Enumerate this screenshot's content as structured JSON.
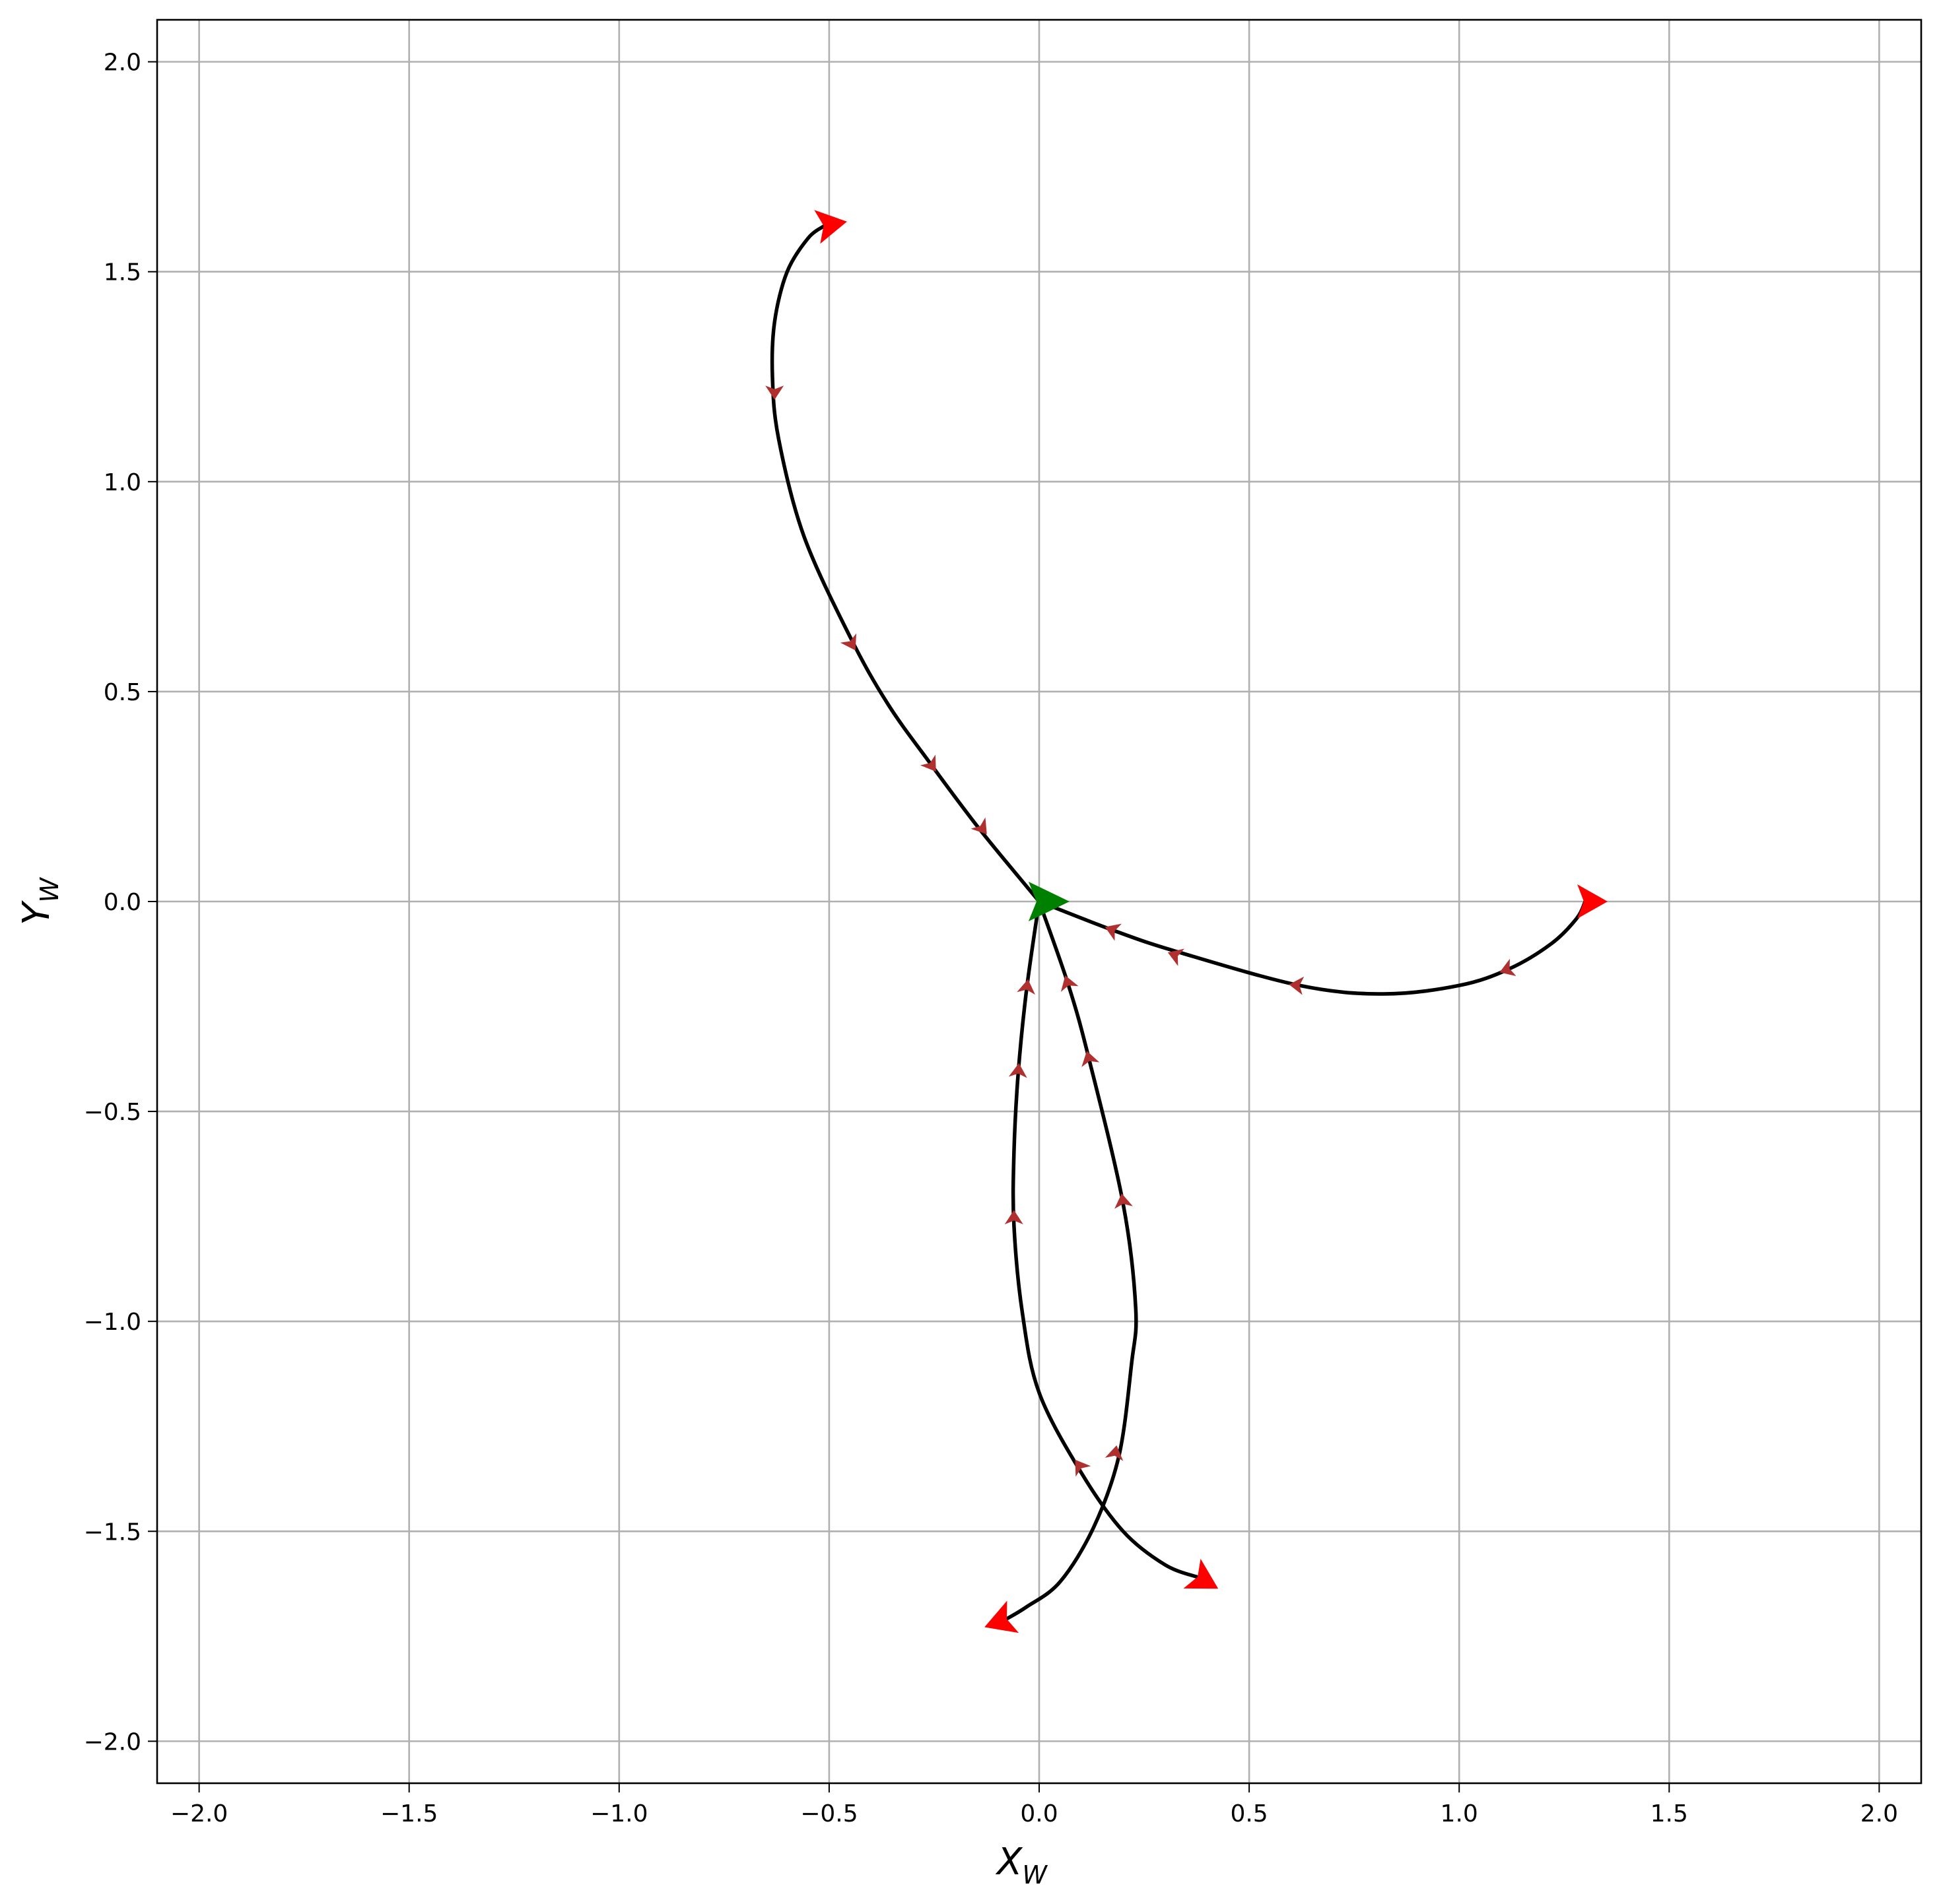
{
  "chart_data": {
    "type": "line",
    "title": "",
    "xlabel": "X",
    "xlabel_sub": "W",
    "ylabel": "Y",
    "ylabel_sub": "W",
    "xlim": [
      -2.1,
      2.1
    ],
    "ylim": [
      -2.1,
      2.1
    ],
    "grid": true,
    "x_ticks": [
      -2.0,
      -1.5,
      -1.0,
      -0.5,
      0.0,
      0.5,
      1.0,
      1.5,
      2.0
    ],
    "y_ticks": [
      -2.0,
      -1.5,
      -1.0,
      -0.5,
      0.0,
      0.5,
      1.0,
      1.5,
      2.0
    ],
    "x_tick_labels": [
      "−2.0",
      "−1.5",
      "−1.0",
      "−0.5",
      "0.0",
      "0.5",
      "1.0",
      "1.5",
      "2.0"
    ],
    "y_tick_labels": [
      "−2.0",
      "−1.5",
      "−1.0",
      "−0.5",
      "0.0",
      "0.5",
      "1.0",
      "1.5",
      "2.0"
    ],
    "colors": {
      "trajectory": "#000000",
      "endpoint_marker": "#ff0000",
      "direction_arrow": "#b03030",
      "origin_marker": "#008000"
    },
    "origin": {
      "x": 0.0,
      "y": 0.0,
      "heading_deg": 0
    },
    "series": [
      {
        "points": [
          [
            0.0,
            0.0
          ],
          [
            -0.14,
            0.17
          ],
          [
            -0.26,
            0.33
          ],
          [
            -0.36,
            0.47
          ],
          [
            -0.45,
            0.63
          ],
          [
            -0.56,
            0.87
          ],
          [
            -0.62,
            1.1
          ],
          [
            -0.635,
            1.25
          ],
          [
            -0.63,
            1.38
          ],
          [
            -0.6,
            1.5
          ],
          [
            -0.55,
            1.58
          ],
          [
            -0.51,
            1.61
          ]
        ],
        "end_heading_deg": 10,
        "arrows": [
          {
            "x": -0.63,
            "y": 1.22,
            "angle_deg": 270
          },
          {
            "x": -0.45,
            "y": 0.62,
            "angle_deg": 300
          },
          {
            "x": -0.26,
            "y": 0.33,
            "angle_deg": 305
          },
          {
            "x": -0.14,
            "y": 0.18,
            "angle_deg": 308
          }
        ]
      },
      {
        "points": [
          [
            0.0,
            0.0
          ],
          [
            0.18,
            -0.07
          ],
          [
            0.33,
            -0.12
          ],
          [
            0.62,
            -0.2
          ],
          [
            0.82,
            -0.22
          ],
          [
            1.0,
            -0.2
          ],
          [
            1.12,
            -0.16
          ],
          [
            1.22,
            -0.1
          ],
          [
            1.28,
            -0.04
          ],
          [
            1.3,
            0.0
          ]
        ],
        "end_heading_deg": 0,
        "arrows": [
          {
            "x": 1.12,
            "y": -0.16,
            "angle_deg": 200
          },
          {
            "x": 0.62,
            "y": -0.2,
            "angle_deg": 175
          },
          {
            "x": 0.33,
            "y": -0.13,
            "angle_deg": 160
          },
          {
            "x": 0.18,
            "y": -0.07,
            "angle_deg": 158
          }
        ]
      },
      {
        "points": [
          [
            0.0,
            0.0
          ],
          [
            -0.03,
            -0.21
          ],
          [
            -0.05,
            -0.41
          ],
          [
            -0.06,
            -0.6
          ],
          [
            -0.06,
            -0.77
          ],
          [
            -0.04,
            -0.98
          ],
          [
            0.0,
            -1.17
          ],
          [
            0.1,
            -1.36
          ],
          [
            0.2,
            -1.5
          ],
          [
            0.3,
            -1.58
          ],
          [
            0.38,
            -1.61
          ]
        ],
        "end_heading_deg": -30,
        "arrows": [
          {
            "x": -0.06,
            "y": -0.76,
            "angle_deg": 90
          },
          {
            "x": -0.05,
            "y": -0.41,
            "angle_deg": 86
          },
          {
            "x": -0.03,
            "y": -0.21,
            "angle_deg": 82
          },
          {
            "x": 0.1,
            "y": -1.35,
            "angle_deg": 125
          }
        ]
      },
      {
        "points": [
          [
            0.0,
            0.0
          ],
          [
            0.07,
            -0.2
          ],
          [
            0.12,
            -0.38
          ],
          [
            0.2,
            -0.72
          ],
          [
            0.23,
            -0.97
          ],
          [
            0.22,
            -1.1
          ],
          [
            0.19,
            -1.32
          ],
          [
            0.13,
            -1.49
          ],
          [
            0.05,
            -1.62
          ],
          [
            -0.03,
            -1.68
          ],
          [
            -0.08,
            -1.71
          ]
        ],
        "end_heading_deg": 200,
        "arrows": [
          {
            "x": 0.18,
            "y": -1.32,
            "angle_deg": 80
          },
          {
            "x": 0.2,
            "y": -0.72,
            "angle_deg": 98
          },
          {
            "x": 0.12,
            "y": -0.38,
            "angle_deg": 105
          },
          {
            "x": 0.07,
            "y": -0.2,
            "angle_deg": 108
          }
        ]
      }
    ]
  }
}
